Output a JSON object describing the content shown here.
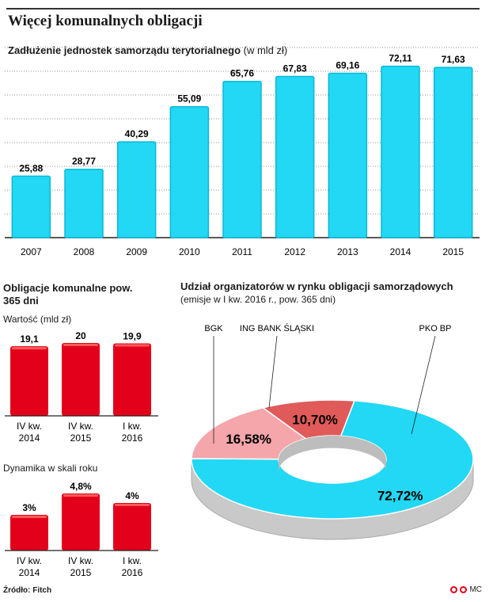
{
  "title": "Więcej komunalnych obligacji",
  "subtitle": "Zadłużenie jednostek samorządu terytorialnego",
  "subtitle_unit": "(w mld zł)",
  "left_title": "Obligacje komunalne pow. 365 dni",
  "value_label": "Wartość (mld zł)",
  "dynamics_label": "Dynamika w skali roku",
  "donut_title": "Udział organizatorów w rynku obligacji samorządowych",
  "donut_subtitle": "(emisje w I kw. 2016 r., pow. 365 dni)",
  "source": "Źródło: Fitch",
  "logo_text": "MC",
  "colors": {
    "cyan": "#22d8f4",
    "cyan_edge": "#0ab8d6",
    "red": "#e3001b",
    "red_light": "#e05a5a",
    "pink": "#f4a6aa"
  },
  "chart_data": [
    {
      "type": "bar",
      "categories": [
        "2007",
        "2008",
        "2009",
        "2010",
        "2011",
        "2012",
        "2013",
        "2014",
        "2015"
      ],
      "values": [
        25.88,
        28.77,
        40.29,
        55.09,
        65.76,
        67.83,
        69.16,
        72.11,
        71.63
      ],
      "labels": [
        "25,88",
        "28,77",
        "40,29",
        "55,09",
        "65,76",
        "67,83",
        "69,16",
        "72,11",
        "71,63"
      ],
      "ylim": [
        0,
        80
      ],
      "grid": true
    },
    {
      "type": "bar",
      "categories": [
        "IV kw.|2014",
        "IV kw.|2015",
        "I kw.|2016"
      ],
      "values": [
        19.1,
        20,
        19.9
      ],
      "labels": [
        "19,1",
        "20",
        "19,9"
      ]
    },
    {
      "type": "bar",
      "categories": [
        "IV kw.|2014",
        "IV kw.|2015",
        "I kw.|2016"
      ],
      "values": [
        3,
        4.8,
        4
      ],
      "labels": [
        "3%",
        "4,8%",
        "4%"
      ]
    },
    {
      "type": "pie",
      "slices": [
        {
          "name": "PKO BP",
          "value": 72.72,
          "label": "72,72%"
        },
        {
          "name": "BGK",
          "value": 16.58,
          "label": "16,58%"
        },
        {
          "name": "ING BANK ŚLĄSKI",
          "value": 10.7,
          "label": "10,70%"
        }
      ]
    }
  ]
}
